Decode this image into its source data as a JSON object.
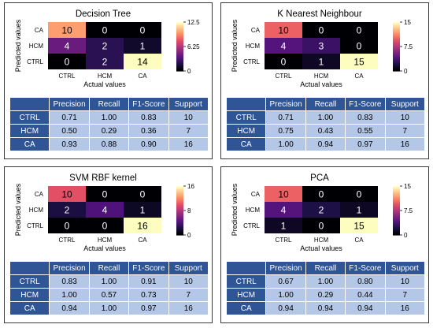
{
  "chart_data": [
    {
      "type": "heatmap",
      "title": "Decision Tree",
      "xlabel": "Actual values",
      "ylabel": "Predicted values",
      "x_categories": [
        "CTRL",
        "HCM",
        "CA"
      ],
      "y_categories": [
        "CA",
        "HCM",
        "CTRL"
      ],
      "values": [
        [
          10,
          0,
          0
        ],
        [
          4,
          2,
          1
        ],
        [
          0,
          2,
          14
        ]
      ],
      "colorbar": {
        "min": 0,
        "max": 12.5,
        "ticks": [
          "12.5",
          "6.25",
          "0"
        ]
      },
      "table": {
        "columns": [
          "",
          "Precision",
          "Recall",
          "F1-Score",
          "Support"
        ],
        "rows": [
          [
            "CTRL",
            "0.71",
            "1.00",
            "0.83",
            "10"
          ],
          [
            "HCM",
            "0.50",
            "0.29",
            "0.36",
            "7"
          ],
          [
            "CA",
            "0.93",
            "0.88",
            "0.90",
            "16"
          ]
        ]
      }
    },
    {
      "type": "heatmap",
      "title": "K Nearest Neighbour",
      "xlabel": "Actual values",
      "ylabel": "Predicted values",
      "x_categories": [
        "CTRL",
        "HCM",
        "CA"
      ],
      "y_categories": [
        "CA",
        "HCM",
        "CTRL"
      ],
      "values": [
        [
          10,
          0,
          0
        ],
        [
          4,
          3,
          0
        ],
        [
          0,
          1,
          15
        ]
      ],
      "colorbar": {
        "min": 0,
        "max": 15,
        "ticks": [
          "15",
          "7.5",
          "0"
        ]
      },
      "table": {
        "columns": [
          "",
          "Precision",
          "Recall",
          "F1-Score",
          "Support"
        ],
        "rows": [
          [
            "CTRL",
            "0.71",
            "1.00",
            "0.83",
            "10"
          ],
          [
            "HCM",
            "0.75",
            "0.43",
            "0.55",
            "7"
          ],
          [
            "CA",
            "1.00",
            "0.94",
            "0.97",
            "16"
          ]
        ]
      }
    },
    {
      "type": "heatmap",
      "title": "SVM RBF kernel",
      "xlabel": "Actual values",
      "ylabel": "Predicted values",
      "x_categories": [
        "CTRL",
        "HCM",
        "CA"
      ],
      "y_categories": [
        "CA",
        "HCM",
        "CTRL"
      ],
      "values": [
        [
          10,
          0,
          0
        ],
        [
          2,
          4,
          1
        ],
        [
          0,
          0,
          16
        ]
      ],
      "colorbar": {
        "min": 0,
        "max": 16,
        "ticks": [
          "16",
          "8",
          "0"
        ]
      },
      "table": {
        "columns": [
          "",
          "Precision",
          "Recall",
          "F1-Score",
          "Support"
        ],
        "rows": [
          [
            "CTRL",
            "0.83",
            "1.00",
            "0.91",
            "10"
          ],
          [
            "HCM",
            "1.00",
            "0.57",
            "0.73",
            "7"
          ],
          [
            "CA",
            "0.94",
            "1.00",
            "0.97",
            "16"
          ]
        ]
      }
    },
    {
      "type": "heatmap",
      "title": "PCA",
      "xlabel": "Actual values",
      "ylabel": "Predicted values",
      "x_categories": [
        "CTRL",
        "HCM",
        "CA"
      ],
      "y_categories": [
        "CA",
        "HCM",
        "CTRL"
      ],
      "values": [
        [
          10,
          0,
          0
        ],
        [
          4,
          2,
          1
        ],
        [
          1,
          0,
          15
        ]
      ],
      "colorbar": {
        "min": 0,
        "max": 15,
        "ticks": [
          "15",
          "7.5",
          "0"
        ]
      },
      "table": {
        "columns": [
          "",
          "Precision",
          "Recall",
          "F1-Score",
          "Support"
        ],
        "rows": [
          [
            "CTRL",
            "0.67",
            "1.00",
            "0.80",
            "10"
          ],
          [
            "HCM",
            "1.00",
            "0.29",
            "0.44",
            "7"
          ],
          [
            "CA",
            "0.94",
            "0.94",
            "0.94",
            "16"
          ]
        ]
      }
    }
  ]
}
